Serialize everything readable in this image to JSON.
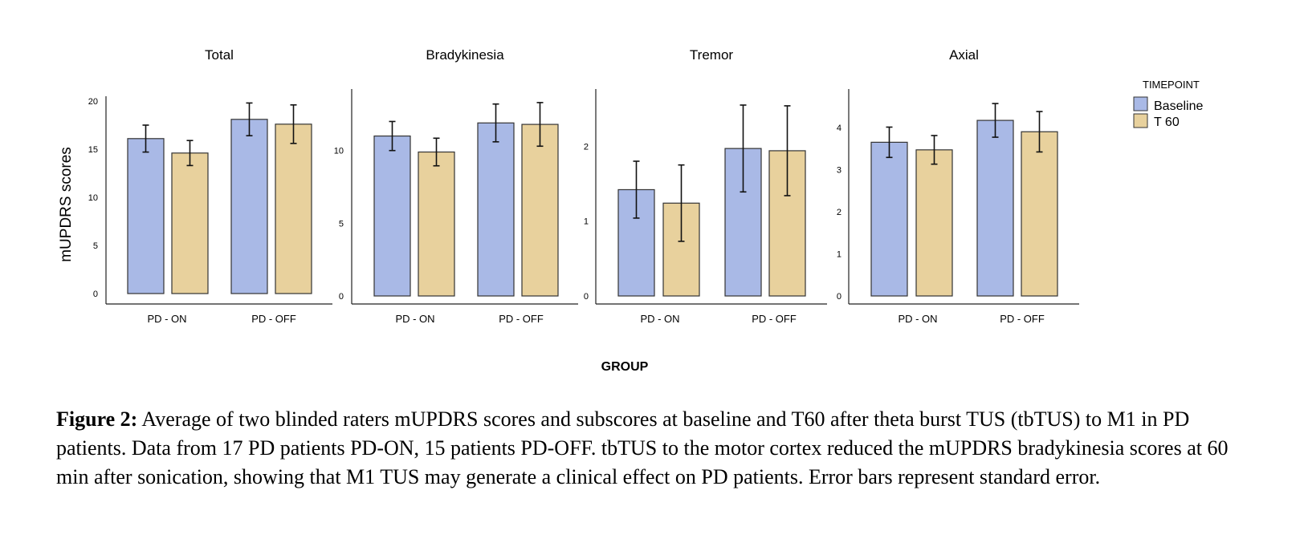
{
  "chart_data": {
    "type": "bar",
    "categories": [
      "PD - ON",
      "PD - OFF"
    ],
    "series_names": [
      "Baseline",
      "T 60"
    ],
    "xlabel": "GROUP",
    "ylabel": "mUPDRS scores",
    "legend": {
      "title": "TIMEPOINT",
      "position": "right",
      "labels": [
        "Baseline",
        "T 60"
      ]
    },
    "colors": {
      "Baseline": "#a9b9e6",
      "T 60": "#e8d19d"
    },
    "error_bars": "standard error",
    "grid": false,
    "panels": [
      {
        "title": "Total",
        "ylim": [
          0,
          20
        ],
        "yticks": [
          "0",
          "5",
          "10",
          "15",
          "20"
        ],
        "series": [
          {
            "name": "Baseline",
            "values": [
              16.1,
              18.1
            ],
            "errors": [
              1.4,
              1.7
            ]
          },
          {
            "name": "T 60",
            "values": [
              14.6,
              17.6
            ],
            "errors": [
              1.3,
              2.0
            ]
          }
        ]
      },
      {
        "title": "Bradykinesia",
        "ylim": [
          0,
          13.9
        ],
        "yticks": [
          "0",
          "5",
          "10"
        ],
        "series": [
          {
            "name": "Baseline",
            "values": [
              11.0,
              11.9
            ],
            "errors": [
              1.0,
              1.3
            ]
          },
          {
            "name": "T 60",
            "values": [
              9.9,
              11.8
            ],
            "errors": [
              0.95,
              1.5
            ]
          }
        ]
      },
      {
        "title": "Tremor",
        "ylim": [
          0,
          2.7
        ],
        "yticks": [
          "0",
          "1",
          "2"
        ],
        "series": [
          {
            "name": "Baseline",
            "values": [
              1.42,
              1.97
            ],
            "errors": [
              0.38,
              0.58
            ]
          },
          {
            "name": "T 60",
            "values": [
              1.24,
              1.94
            ],
            "errors": [
              0.51,
              0.6
            ]
          }
        ]
      },
      {
        "title": "Axial",
        "ylim": [
          0,
          4.8
        ],
        "yticks": [
          "0",
          "1",
          "2",
          "3",
          "4"
        ],
        "series": [
          {
            "name": "Baseline",
            "values": [
              3.65,
              4.17
            ],
            "errors": [
              0.36,
              0.4
            ]
          },
          {
            "name": "T 60",
            "values": [
              3.47,
              3.9
            ],
            "errors": [
              0.34,
              0.48
            ]
          }
        ]
      }
    ]
  },
  "caption": {
    "label": "Figure 2:",
    "text": " Average of two blinded raters mUPDRS scores and subscores at baseline and T60 after theta burst TUS (tbTUS) to M1 in PD patients. Data from 17 PD patients PD-ON, 15 patients PD-OFF. tbTUS to the motor cortex reduced the mUPDRS bradykinesia scores at 60 min after sonication, showing that M1 TUS may generate a clinical effect on PD patients. Error bars represent standard error."
  }
}
